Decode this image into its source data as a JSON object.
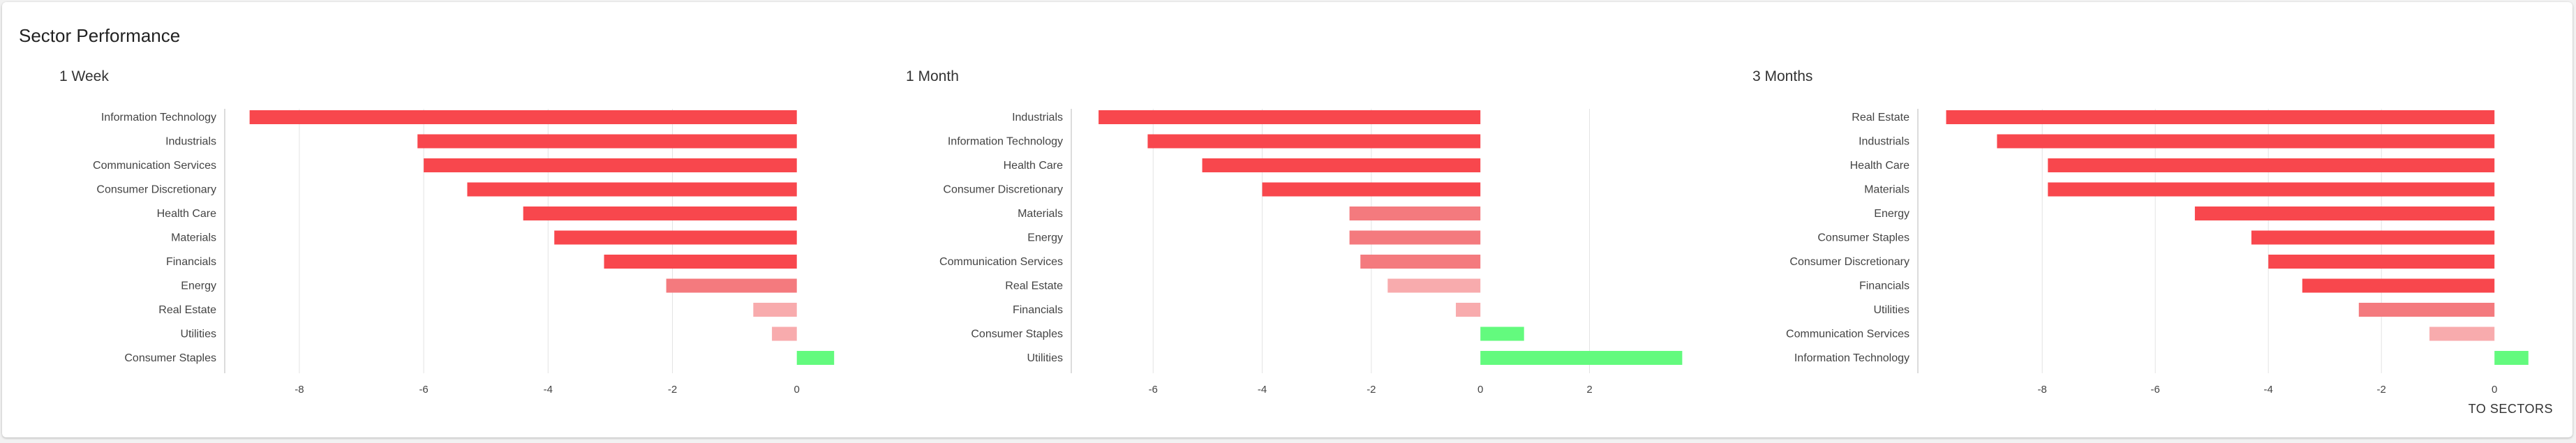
{
  "card": {
    "title": "Sector Performance",
    "footer_link": "TO SECTORS"
  },
  "colors": {
    "strong_negative": "#f8474d",
    "medium_negative": "#f47a7e",
    "weak_negative": "#f8abad",
    "positive": "#63fa7e",
    "gridline": "#e3e3e3",
    "axis": "#d0d0d0"
  },
  "chart_data": [
    {
      "type": "bar",
      "orientation": "horizontal",
      "title": "1 Week",
      "categories": [
        "Information Technology",
        "Industrials",
        "Communication Services",
        "Consumer Discretionary",
        "Health Care",
        "Materials",
        "Financials",
        "Energy",
        "Real Estate",
        "Utilities",
        "Consumer Staples"
      ],
      "values": [
        -8.8,
        -6.1,
        -6.0,
        -5.3,
        -4.4,
        -3.9,
        -3.1,
        -2.1,
        -0.7,
        -0.4,
        0.6
      ],
      "xlim": [
        -9.2,
        0.8
      ],
      "xticks": [
        -8,
        -6,
        -4,
        -2,
        0
      ],
      "grid": true
    },
    {
      "type": "bar",
      "orientation": "horizontal",
      "title": "1 Month",
      "categories": [
        "Industrials",
        "Information Technology",
        "Health Care",
        "Consumer Discretionary",
        "Materials",
        "Energy",
        "Communication Services",
        "Real Estate",
        "Financials",
        "Consumer Staples",
        "Utilities"
      ],
      "values": [
        -7.0,
        -6.1,
        -5.1,
        -4.0,
        -2.4,
        -2.4,
        -2.2,
        -1.7,
        -0.45,
        0.8,
        3.7
      ],
      "xlim": [
        -7.5,
        3.9
      ],
      "xticks": [
        -6,
        -4,
        -2,
        0,
        2
      ],
      "grid": true
    },
    {
      "type": "bar",
      "orientation": "horizontal",
      "title": "3 Months",
      "categories": [
        "Real Estate",
        "Industrials",
        "Health Care",
        "Materials",
        "Energy",
        "Consumer Staples",
        "Consumer Discretionary",
        "Financials",
        "Utilities",
        "Communication Services",
        "Information Technology"
      ],
      "values": [
        -9.7,
        -8.8,
        -7.9,
        -7.9,
        -5.3,
        -4.3,
        -4.0,
        -3.4,
        -2.4,
        -1.15,
        0.6
      ],
      "xlim": [
        -10.2,
        0.8
      ],
      "xticks": [
        -8,
        -6,
        -4,
        -2,
        0
      ],
      "grid": true
    }
  ]
}
